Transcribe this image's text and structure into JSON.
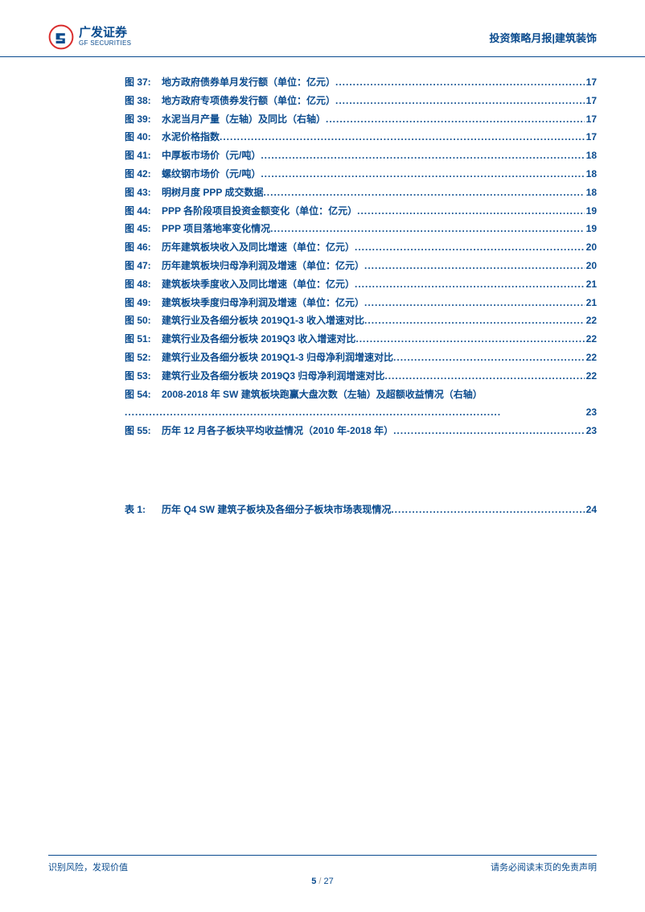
{
  "header": {
    "logo_cn": "广发证券",
    "logo_en": "GF SECURITIES",
    "right_text": "投资策略月报|建筑装饰"
  },
  "figures": [
    {
      "prefix": "图 37:",
      "title": "地方政府债券单月发行额（单位：亿元）",
      "page": "17"
    },
    {
      "prefix": "图 38:",
      "title": "地方政府专项债券发行额（单位：亿元）",
      "page": "17"
    },
    {
      "prefix": "图 39:",
      "title": "水泥当月产量（左轴）及同比（右轴）",
      "page": "17"
    },
    {
      "prefix": "图 40:",
      "title": "水泥价格指数",
      "page": "17"
    },
    {
      "prefix": "图 41:",
      "title": "中厚板市场价（元/吨）",
      "page": "18"
    },
    {
      "prefix": "图 42:",
      "title": "螺纹钢市场价（元/吨）",
      "page": "18"
    },
    {
      "prefix": "图 43:",
      "title": "明树月度 PPP 成交数据",
      "page": "18"
    },
    {
      "prefix": "图 44:",
      "title": "PPP 各阶段项目投资金额变化（单位：亿元）",
      "page": "19"
    },
    {
      "prefix": "图 45:",
      "title": "PPP 项目落地率变化情况",
      "page": "19"
    },
    {
      "prefix": "图 46:",
      "title": "历年建筑板块收入及同比增速（单位：亿元）",
      "page": "20"
    },
    {
      "prefix": "图 47:",
      "title": "历年建筑板块归母净利润及增速（单位：亿元）",
      "page": "20"
    },
    {
      "prefix": "图 48:",
      "title": "建筑板块季度收入及同比增速（单位：亿元）",
      "page": "21"
    },
    {
      "prefix": "图 49:",
      "title": "建筑板块季度归母净利润及增速（单位：亿元）",
      "page": "21"
    },
    {
      "prefix": "图 50:",
      "title": "建筑行业及各细分板块 2019Q1-3 收入增速对比",
      "page": "22"
    },
    {
      "prefix": "图 51:",
      "title": "建筑行业及各细分板块 2019Q3 收入增速对比",
      "page": "22"
    },
    {
      "prefix": "图 52:",
      "title": "建筑行业及各细分板块 2019Q1-3 归母净利润增速对比",
      "page": "22"
    },
    {
      "prefix": "图 53:",
      "title": "建筑行业及各细分板块 2019Q3 归母净利润增速对比",
      "page": "22"
    },
    {
      "prefix": "图 54:",
      "title": "2008-2018 年 SW 建筑板块跑赢大盘次数（左轴）及超额收益情况（右轴）",
      "page": "23"
    },
    {
      "prefix": "图 55:",
      "title": "历年 12 月各子板块平均收益情况（2010 年-2018 年）",
      "page": "23"
    }
  ],
  "tables": [
    {
      "prefix": "表 1:",
      "title": "历年 Q4 SW 建筑子板块及各细分子板块市场表现情况",
      "page": "24"
    }
  ],
  "footer": {
    "left": "识别风险，发现价值",
    "right": "请务必阅读末页的免责声明",
    "page_current": "5",
    "page_total": "27"
  },
  "colors": {
    "brand": "#0a4b8e",
    "logo_red": "#d92e2e"
  }
}
